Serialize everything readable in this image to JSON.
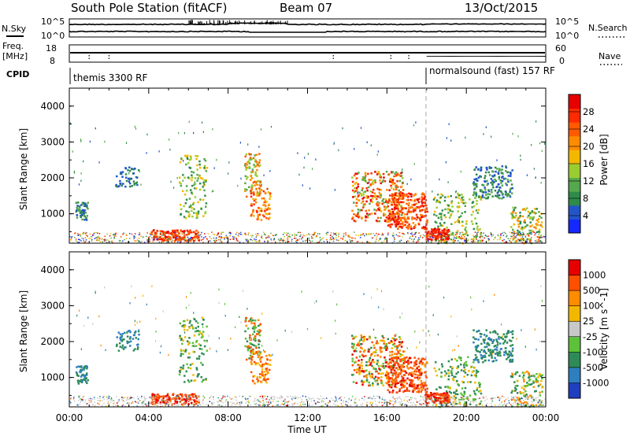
{
  "header": {
    "station": "South Pole Station (fitACF)",
    "beam": "Beam 07",
    "date": "13/Oct/2015"
  },
  "summary_panels": {
    "nsky_label": "N.Sky",
    "nsky_ticks": [
      "10^5",
      "10^0"
    ],
    "nsearch_label": "N.Search",
    "nsearch_ticks": [
      "10^5",
      "10^0"
    ],
    "freq_label_1": "Freq.",
    "freq_label_2": "[MHz]",
    "freq_ticks": [
      "18",
      "8"
    ],
    "nave_label": "Nave",
    "nave_ticks": [
      "60",
      "0"
    ],
    "cpid_label": "CPID",
    "cpid_modes": [
      "themis 3300 RF",
      "normalsound (fast) 157 RF"
    ]
  },
  "chart_data": [
    {
      "type": "heatmap",
      "title": "",
      "ylabel": "Slant Range [km]",
      "xlabel": "",
      "ylim": [
        180,
        4500
      ],
      "yticks": [
        "1000",
        "2000",
        "3000",
        "4000"
      ],
      "xlim": [
        "00:00",
        "24:00"
      ],
      "colorbar": {
        "label": "Power [dB]",
        "ticks": [
          "4",
          "8",
          "12",
          "16",
          "20",
          "24",
          "28"
        ],
        "colors": [
          "#1428ff",
          "#2355c8",
          "#2e8b4a",
          "#56a84e",
          "#9acd32",
          "#f2b800",
          "#ff8c00",
          "#ff5a00",
          "#ff2a00",
          "#e60000"
        ]
      }
    },
    {
      "type": "heatmap",
      "title": "",
      "ylabel": "Slant Range [km]",
      "xlabel": "Time UT",
      "ylim": [
        180,
        4500
      ],
      "yticks": [
        "1000",
        "2000",
        "3000",
        "4000"
      ],
      "xticks": [
        "00:00",
        "04:00",
        "08:00",
        "12:00",
        "16:00",
        "20:00",
        "00:00"
      ],
      "colorbar": {
        "label": "Velocity [m s^-1]",
        "ticks": [
          "1000",
          "500",
          "100",
          "25",
          "-25",
          "-100",
          "-500",
          "-1000"
        ],
        "colors": [
          "#1f3fbf",
          "#2d7fbf",
          "#2e8b57",
          "#5cc23a",
          "#c8c8c8",
          "#f2b800",
          "#ff8c00",
          "#ff5000",
          "#e60000"
        ]
      }
    }
  ]
}
